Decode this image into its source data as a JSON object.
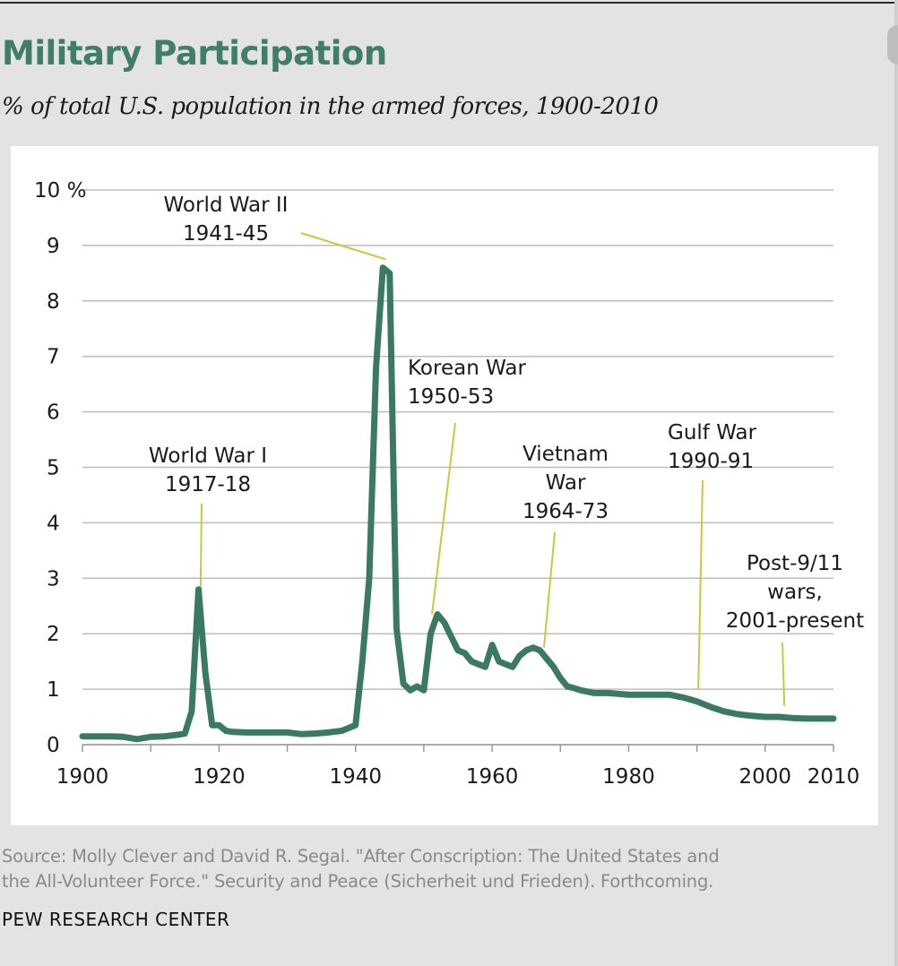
{
  "header": {
    "title": "Military Participation",
    "subtitle": "% of total U.S. population in the armed forces, 1900-2010"
  },
  "footer": {
    "source_line1": "Source: Molly Clever and David R. Segal. \"After Conscription: The United States and",
    "source_line2": "the All-Volunteer Force.\" Security and Peace (Sicherheit und Frieden). Forthcoming.",
    "brand": "PEW RESEARCH CENTER"
  },
  "colors": {
    "title": "#3f7e68",
    "line": "#3a7a63",
    "leader": "#c9c83f",
    "grid": "#bdbdbd"
  },
  "chart_data": {
    "type": "line",
    "title": "Military Participation",
    "subtitle": "% of total U.S. population in the armed forces, 1900-2010",
    "xlabel": "",
    "ylabel": "",
    "xlim": [
      1900,
      2010
    ],
    "ylim": [
      0,
      10
    ],
    "grid": true,
    "x_ticks": [
      1900,
      1920,
      1940,
      1960,
      1980,
      2000,
      2010
    ],
    "y_ticks": [
      {
        "value": 0,
        "label": "0"
      },
      {
        "value": 1,
        "label": "1"
      },
      {
        "value": 2,
        "label": "2"
      },
      {
        "value": 3,
        "label": "3"
      },
      {
        "value": 4,
        "label": "4"
      },
      {
        "value": 5,
        "label": "5"
      },
      {
        "value": 6,
        "label": "6"
      },
      {
        "value": 7,
        "label": "7"
      },
      {
        "value": 8,
        "label": "8"
      },
      {
        "value": 9,
        "label": "9"
      },
      {
        "value": 10,
        "label": "10 %"
      }
    ],
    "series": [
      {
        "name": "% of population in armed forces",
        "x": [
          1900,
          1902,
          1904,
          1906,
          1908,
          1910,
          1912,
          1914,
          1915,
          1916,
          1917,
          1918,
          1919,
          1920,
          1921,
          1922,
          1924,
          1926,
          1928,
          1930,
          1932,
          1934,
          1936,
          1938,
          1939,
          1940,
          1941,
          1942,
          1943,
          1944,
          1945,
          1946,
          1947,
          1948,
          1949,
          1950,
          1951,
          1952,
          1953,
          1954,
          1955,
          1956,
          1957,
          1958,
          1959,
          1960,
          1961,
          1962,
          1963,
          1964,
          1965,
          1966,
          1967,
          1968,
          1969,
          1970,
          1971,
          1972,
          1973,
          1975,
          1977,
          1980,
          1983,
          1986,
          1988,
          1990,
          1992,
          1994,
          1996,
          1998,
          2000,
          2002,
          2004,
          2006,
          2008,
          2010
        ],
        "values": [
          0.15,
          0.15,
          0.15,
          0.14,
          0.1,
          0.14,
          0.15,
          0.18,
          0.2,
          0.6,
          2.8,
          1.3,
          0.35,
          0.35,
          0.25,
          0.23,
          0.22,
          0.22,
          0.22,
          0.22,
          0.19,
          0.2,
          0.22,
          0.25,
          0.3,
          0.35,
          1.5,
          3.0,
          6.8,
          8.6,
          8.5,
          2.1,
          1.1,
          0.98,
          1.05,
          0.98,
          2.0,
          2.35,
          2.2,
          1.95,
          1.7,
          1.65,
          1.5,
          1.45,
          1.4,
          1.8,
          1.5,
          1.45,
          1.4,
          1.6,
          1.7,
          1.75,
          1.7,
          1.55,
          1.4,
          1.2,
          1.05,
          1.02,
          0.98,
          0.93,
          0.93,
          0.9,
          0.9,
          0.9,
          0.85,
          0.78,
          0.68,
          0.6,
          0.55,
          0.52,
          0.5,
          0.5,
          0.48,
          0.47,
          0.47,
          0.47
        ]
      }
    ],
    "annotations": [
      {
        "lines": [
          "World War I",
          "1917-18"
        ],
        "year": 1917.3,
        "value": 2.8
      },
      {
        "lines": [
          "World War II",
          "1941-45"
        ],
        "year": 1944.4,
        "value": 8.75
      },
      {
        "lines": [
          "Korean War",
          "1950-53"
        ],
        "year": 1951.2,
        "value": 2.35
      },
      {
        "lines": [
          "Vietnam",
          "War",
          "1964-73"
        ],
        "year": 1967.6,
        "value": 1.75
      },
      {
        "lines": [
          "Gulf War",
          "1990-91"
        ],
        "year": 1990.2,
        "value": 1.0
      },
      {
        "lines": [
          "Post-9/11",
          "wars,",
          "2001-present"
        ],
        "year": 2002.8,
        "value": 0.7
      }
    ]
  }
}
